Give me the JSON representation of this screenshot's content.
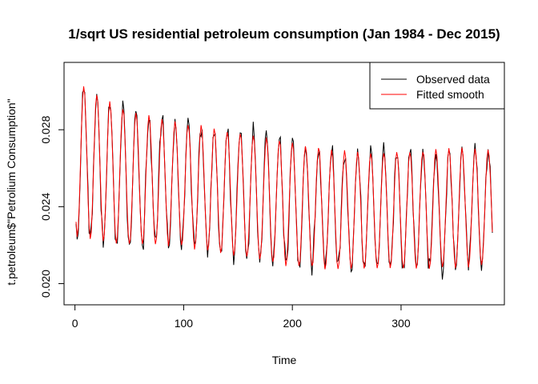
{
  "chart_data": {
    "type": "line",
    "title": "1/sqrt US residential petroleum consumption (Jan 1984 - Dec 2015)",
    "xlabel": "Time",
    "ylabel": "t.petroleum$\"Petrolium Consumption\"",
    "xlim": [
      1,
      384
    ],
    "ylim": [
      0.0189,
      0.0315
    ],
    "x_ticks": [
      0,
      100,
      200,
      300
    ],
    "y_ticks": [
      0.02,
      0.024,
      0.028
    ],
    "y_tick_labels": [
      "0.020",
      "0.024",
      "0.028"
    ],
    "grid": false,
    "legend_position": "top-right",
    "period": 12,
    "trend_anchors": {
      "x": [
        1,
        12,
        48,
        96,
        144,
        192,
        240,
        288,
        336,
        384
      ],
      "y": [
        0.0265,
        0.0262,
        0.0255,
        0.0252,
        0.0247,
        0.0242,
        0.0238,
        0.0238,
        0.0239,
        0.024
      ]
    },
    "seasonal_amplitude": {
      "x": [
        1,
        48,
        96,
        144,
        192,
        240,
        288,
        336,
        384
      ],
      "y": [
        0.004,
        0.0035,
        0.0032,
        0.0032,
        0.0032,
        0.0031,
        0.003,
        0.0031,
        0.003
      ]
    },
    "series": [
      {
        "name": "Observed data",
        "color": "#000000",
        "noise_sd": 0.00045
      },
      {
        "name": "Fitted smooth",
        "color": "#ff0000",
        "noise_sd": 8e-05
      }
    ]
  },
  "axis_labels": {
    "x_ticks": [
      "0",
      "100",
      "200",
      "300"
    ],
    "y_ticks": [
      "0.020",
      "0.024",
      "0.028"
    ]
  }
}
